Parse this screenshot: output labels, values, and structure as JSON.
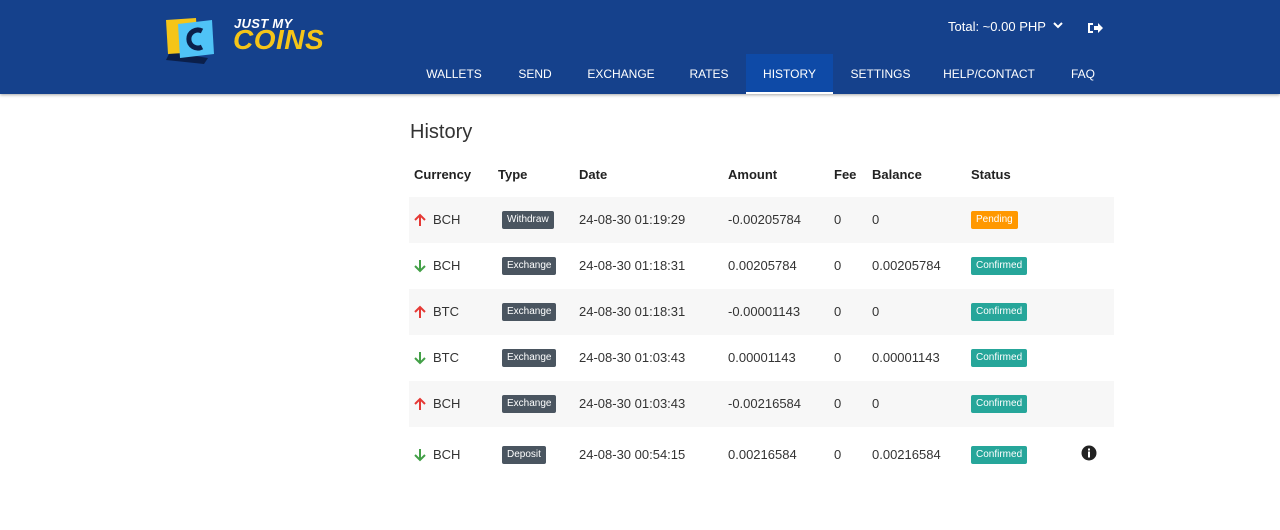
{
  "brand": {
    "line1": "JUST MY",
    "line2": "COINS",
    "logo_letter": "C"
  },
  "header": {
    "total_label": "Total: ~0.00  PHP"
  },
  "colors": {
    "header_bg": "#15418c",
    "active_tab_bg": "#0e4aa7",
    "brand_yellow": "#f5c518",
    "pending": "#ff9800",
    "confirmed": "#26a69a",
    "badge_dark": "#4a5560",
    "arrow_up": "#e53935",
    "arrow_down": "#43a047"
  },
  "nav": {
    "items": [
      {
        "label": "WALLETS",
        "active": false
      },
      {
        "label": "SEND",
        "active": false
      },
      {
        "label": "EXCHANGE",
        "active": false
      },
      {
        "label": "RATES",
        "active": false
      },
      {
        "label": "HISTORY",
        "active": true
      },
      {
        "label": "SETTINGS",
        "active": false
      },
      {
        "label": "HELP/CONTACT",
        "active": false
      },
      {
        "label": "FAQ",
        "active": false
      }
    ]
  },
  "page": {
    "title": "History"
  },
  "table": {
    "headers": [
      "Currency",
      "Type",
      "Date",
      "Amount",
      "Fee",
      "Balance",
      "Status"
    ],
    "rows": [
      {
        "direction": "up",
        "currency": "BCH",
        "type": "Withdraw",
        "date": "24-08-30 01:19:29",
        "amount": "-0.00205784",
        "fee": "0",
        "balance": "0",
        "status": "Pending",
        "info": false
      },
      {
        "direction": "down",
        "currency": "BCH",
        "type": "Exchange",
        "date": "24-08-30 01:18:31",
        "amount": "0.00205784",
        "fee": "0",
        "balance": "0.00205784",
        "status": "Confirmed",
        "info": false
      },
      {
        "direction": "up",
        "currency": "BTC",
        "type": "Exchange",
        "date": "24-08-30 01:18:31",
        "amount": "-0.00001143",
        "fee": "0",
        "balance": "0",
        "status": "Confirmed",
        "info": false
      },
      {
        "direction": "down",
        "currency": "BTC",
        "type": "Exchange",
        "date": "24-08-30 01:03:43",
        "amount": "0.00001143",
        "fee": "0",
        "balance": "0.00001143",
        "status": "Confirmed",
        "info": false
      },
      {
        "direction": "up",
        "currency": "BCH",
        "type": "Exchange",
        "date": "24-08-30 01:03:43",
        "amount": "-0.00216584",
        "fee": "0",
        "balance": "0",
        "status": "Confirmed",
        "info": false
      },
      {
        "direction": "down",
        "currency": "BCH",
        "type": "Deposit",
        "date": "24-08-30 00:54:15",
        "amount": "0.00216584",
        "fee": "0",
        "balance": "0.00216584",
        "status": "Confirmed",
        "info": true
      }
    ]
  }
}
